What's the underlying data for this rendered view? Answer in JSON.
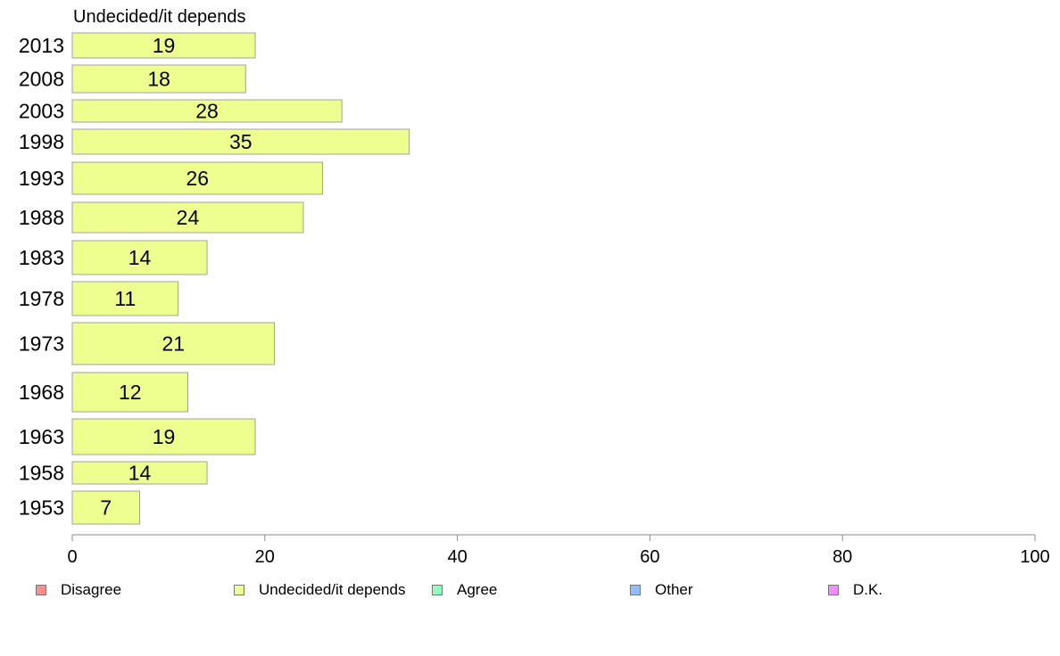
{
  "chart_data": {
    "type": "bar",
    "orientation": "horizontal",
    "title": "Undecided/it depends",
    "categories": [
      "2013",
      "2008",
      "2003",
      "1998",
      "1993",
      "1988",
      "1983",
      "1978",
      "1973",
      "1968",
      "1963",
      "1958",
      "1953"
    ],
    "series": [
      {
        "name": "Undecided/it depends",
        "values": [
          19,
          18,
          28,
          35,
          26,
          24,
          14,
          11,
          21,
          12,
          19,
          14,
          7
        ]
      }
    ],
    "xlim": [
      0,
      100
    ],
    "xticks": [
      0,
      20,
      40,
      60,
      80,
      100
    ],
    "grid": false,
    "legend_position": "bottom",
    "legend": [
      {
        "label": "Disagree",
        "color": "#ff8f8f"
      },
      {
        "label": "Undecided/it depends",
        "color": "#eeff8f"
      },
      {
        "label": "Agree",
        "color": "#8fffbf"
      },
      {
        "label": "Other",
        "color": "#8fbfff"
      },
      {
        "label": "D.K.",
        "color": "#ef8fff"
      }
    ],
    "bar_color": "#eeff8f"
  }
}
